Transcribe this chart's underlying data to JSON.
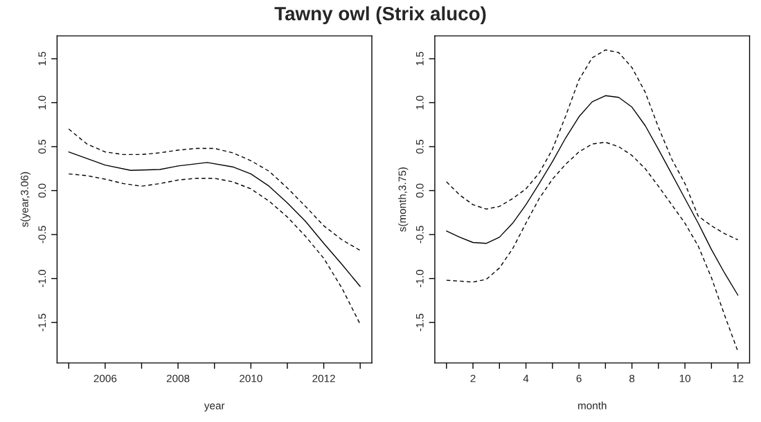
{
  "chart_data": [
    {
      "type": "line",
      "title": "Tawny owl (Strix aluco)",
      "xlabel": "year",
      "ylabel": "s(year,3.06)",
      "grid": false,
      "xlim": [
        2004.68,
        2013.32
      ],
      "ylim": [
        -1.96,
        1.76
      ],
      "xticks": [
        {
          "value": 2005,
          "label": null
        },
        2006,
        {
          "value": 2007,
          "label": null
        },
        2008,
        {
          "value": 2009,
          "label": null
        },
        2010,
        {
          "value": 2011,
          "label": null
        },
        2012,
        {
          "value": 2013,
          "label": null
        }
      ],
      "yticks": [
        {
          "value": -1.5,
          "label": "-1.5"
        },
        {
          "value": -1.0,
          "label": "-1.0"
        },
        {
          "value": -0.5,
          "label": "-0.5"
        },
        {
          "value": 0.0,
          "label": "0.0"
        },
        {
          "value": 0.5,
          "label": "0.5"
        },
        {
          "value": 1.0,
          "label": "1.0"
        },
        {
          "value": 1.5,
          "label": "1.5"
        }
      ],
      "series": [
        {
          "color": "#000000",
          "line_style": "solid",
          "x": [
            2005,
            2006,
            2006.7,
            2007.5,
            2008,
            2008.8,
            2009.5,
            2010,
            2010.5,
            2011,
            2011.5,
            2012,
            2012.5,
            2013
          ],
          "values": [
            0.44,
            0.29,
            0.23,
            0.24,
            0.28,
            0.32,
            0.27,
            0.19,
            0.05,
            -0.14,
            -0.35,
            -0.6,
            -0.84,
            -1.09
          ]
        },
        {
          "color": "#000000",
          "line_style": "dashed",
          "x": [
            2005,
            2005.5,
            2006,
            2006.5,
            2007,
            2007.5,
            2008,
            2008.5,
            2009,
            2009.5,
            2010,
            2010.5,
            2011,
            2011.5,
            2012,
            2012.5,
            2013
          ],
          "values": [
            0.7,
            0.53,
            0.44,
            0.41,
            0.41,
            0.43,
            0.46,
            0.48,
            0.48,
            0.43,
            0.34,
            0.22,
            0.03,
            -0.18,
            -0.4,
            -0.56,
            -0.68
          ]
        },
        {
          "color": "#000000",
          "line_style": "dashed",
          "x": [
            2005,
            2005.5,
            2006,
            2006.5,
            2007,
            2007.5,
            2008,
            2008.5,
            2009,
            2009.5,
            2010,
            2010.5,
            2011,
            2011.5,
            2012,
            2012.5,
            2013
          ],
          "values": [
            0.19,
            0.17,
            0.13,
            0.08,
            0.05,
            0.08,
            0.12,
            0.14,
            0.14,
            0.1,
            0.02,
            -0.12,
            -0.3,
            -0.52,
            -0.77,
            -1.11,
            -1.52
          ]
        }
      ]
    },
    {
      "type": "line",
      "xlabel": "month",
      "ylabel": "s(month,3.75)",
      "grid": false,
      "xlim": [
        0.56,
        12.44
      ],
      "ylim": [
        -1.96,
        1.76
      ],
      "xticks": [
        {
          "value": 1,
          "label": null
        },
        2,
        {
          "value": 3,
          "label": null
        },
        4,
        {
          "value": 5,
          "label": null
        },
        6,
        {
          "value": 7,
          "label": null
        },
        8,
        {
          "value": 9,
          "label": null
        },
        10,
        {
          "value": 11,
          "label": null
        },
        12
      ],
      "yticks": [
        {
          "value": -1.5,
          "label": "-1.5"
        },
        {
          "value": -1.0,
          "label": "-1.0"
        },
        {
          "value": -0.5,
          "label": "-0.5"
        },
        {
          "value": 0.0,
          "label": "0.0"
        },
        {
          "value": 0.5,
          "label": "0.5"
        },
        {
          "value": 1.0,
          "label": "1.0"
        },
        {
          "value": 1.5,
          "label": "1.5"
        }
      ],
      "series": [
        {
          "color": "#000000",
          "line_style": "solid",
          "x": [
            1,
            1.5,
            2,
            2.5,
            3,
            3.5,
            4,
            4.5,
            5,
            5.5,
            6,
            6.5,
            7,
            7.5,
            8,
            8.5,
            9,
            9.5,
            10,
            10.5,
            11,
            11.5,
            12
          ],
          "values": [
            -0.46,
            -0.53,
            -0.59,
            -0.6,
            -0.53,
            -0.37,
            -0.16,
            0.08,
            0.33,
            0.6,
            0.84,
            1.01,
            1.08,
            1.06,
            0.95,
            0.74,
            0.47,
            0.19,
            -0.09,
            -0.37,
            -0.67,
            -0.94,
            -1.19
          ]
        },
        {
          "color": "#000000",
          "line_style": "dashed",
          "x": [
            1,
            1.5,
            2,
            2.5,
            3,
            3.5,
            4,
            4.5,
            5,
            5.5,
            6,
            6.5,
            7,
            7.5,
            8,
            8.5,
            9,
            9.5,
            10,
            10.5,
            11,
            11.5,
            12
          ],
          "values": [
            0.1,
            -0.05,
            -0.16,
            -0.21,
            -0.18,
            -0.09,
            0.02,
            0.2,
            0.47,
            0.85,
            1.26,
            1.51,
            1.6,
            1.57,
            1.4,
            1.12,
            0.72,
            0.36,
            0.08,
            -0.29,
            -0.4,
            -0.49,
            -0.56
          ]
        },
        {
          "color": "#000000",
          "line_style": "dashed",
          "x": [
            1,
            2,
            2.5,
            3,
            3.5,
            4,
            4.5,
            5,
            5.5,
            6,
            6.5,
            7,
            7.5,
            8,
            8.5,
            9,
            9.5,
            10,
            10.5,
            11,
            11.5,
            12
          ],
          "values": [
            -1.02,
            -1.04,
            -1.01,
            -0.88,
            -0.66,
            -0.37,
            -0.09,
            0.13,
            0.3,
            0.44,
            0.53,
            0.55,
            0.5,
            0.4,
            0.25,
            0.05,
            -0.16,
            -0.37,
            -0.63,
            -0.99,
            -1.42,
            -1.83
          ]
        }
      ]
    }
  ]
}
